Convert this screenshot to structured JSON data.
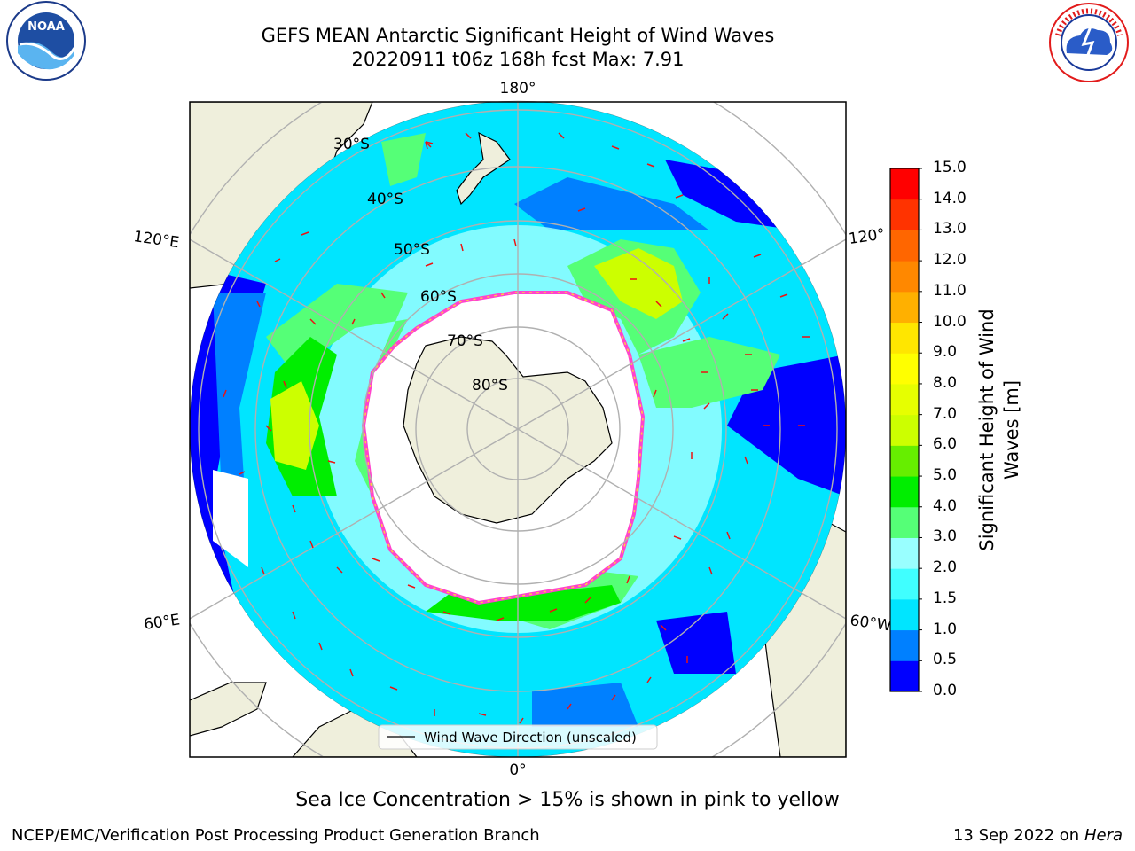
{
  "header": {
    "title_line1": "GEFS MEAN Antarctic Significant Height of Wind Waves",
    "title_line2": "20220911 t06z 168h fcst   Max: 7.91"
  },
  "logos": {
    "left": {
      "name": "noaa-logo",
      "text": "NOAA",
      "ring_text": "NATIONAL OCEANIC AND ATMOSPHERIC ADMINISTRATION · U.S. DEPARTMENT OF COMMERCE"
    },
    "right": {
      "name": "nws-logo",
      "ring_text": "NATIONAL WEATHER SERVICE"
    }
  },
  "map": {
    "lat_labels": [
      "30°S",
      "40°S",
      "50°S",
      "60°S",
      "70°S",
      "80°S"
    ],
    "lon_labels": {
      "top": "180°",
      "bottom": "0°",
      "upper_left": "120°E",
      "upper_right": "120°",
      "lower_left": "60°E",
      "lower_right": "60°W"
    },
    "legend": "Wind Wave Direction (unscaled)",
    "colors": {
      "land": "#efefdc",
      "ice_edge": "#ff44cc",
      "ice_edge_yellow": "#ffcc44",
      "arrow": "#ee1111",
      "grid": "#b0b0b0"
    }
  },
  "colorbar": {
    "label": "Significant Height of Wind Waves [m]",
    "ticks": [
      "0.0",
      "0.5",
      "1.0",
      "1.5",
      "2.0",
      "3.0",
      "4.0",
      "5.0",
      "6.0",
      "7.0",
      "8.0",
      "9.0",
      "10.0",
      "11.0",
      "12.0",
      "13.0",
      "14.0",
      "15.0"
    ],
    "colors": [
      "#0000ff",
      "#0080ff",
      "#00e5ff",
      "#40ffff",
      "#99ffff",
      "#55ff77",
      "#00ee00",
      "#66ee00",
      "#ccff00",
      "#e6ff00",
      "#ffff00",
      "#ffe600",
      "#ffb000",
      "#ff8800",
      "#ff6600",
      "#ff3300",
      "#ff0000"
    ]
  },
  "note": "Sea Ice Concentration > 15% is shown in pink to yellow",
  "footer": {
    "left": "NCEP/EMC/Verification Post Processing Product Generation Branch",
    "right_date": "13 Sep 2022 on",
    "right_host": "Hera"
  }
}
